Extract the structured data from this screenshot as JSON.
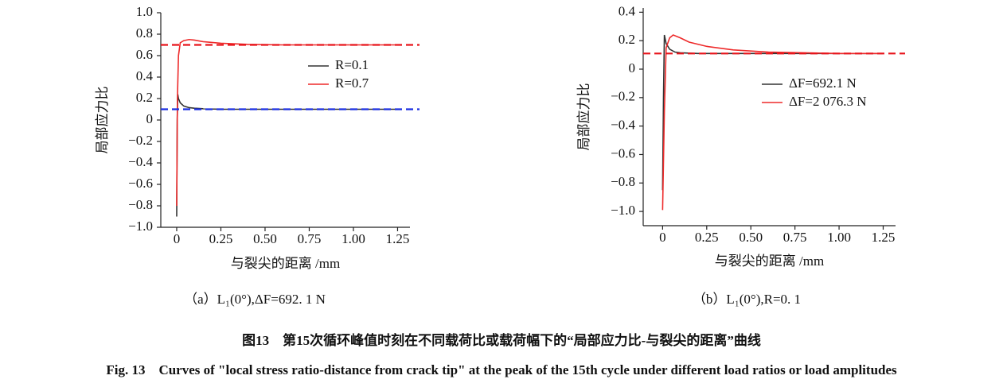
{
  "chart_data": [
    {
      "type": "line",
      "ylabel": "局部应力比",
      "xlabel": "与裂尖的距离 /mm",
      "caption": "（a）L₁(0°),ΔF=692. 1 N",
      "xlim": [
        -0.09,
        1.32
      ],
      "ylim": [
        -1.0,
        1.0
      ],
      "xticks": [
        0,
        0.25,
        {
          "value": 0.5,
          "label": "0.50"
        },
        0.75,
        {
          "value": 1.0,
          "label": "1.00"
        },
        1.25
      ],
      "yticks": [
        {
          "value": 1.0,
          "label": "1.0"
        },
        0.8,
        0.6,
        0.4,
        0.2,
        0,
        {
          "value": -0.2,
          "label": "−0.2"
        },
        {
          "value": -0.4,
          "label": "−0.4"
        },
        {
          "value": -0.6,
          "label": "−0.6"
        },
        {
          "value": -0.8,
          "label": "−0.8"
        },
        {
          "value": -1.0,
          "label": "−1.0"
        }
      ],
      "legend": "center right",
      "reference_lines": [
        {
          "value": 0.7,
          "color": "#e8141b"
        },
        {
          "value": 0.1,
          "color": "#1a2ee0"
        }
      ],
      "series": [
        {
          "name": "R=0.1",
          "color": "#333333",
          "x": [
            0,
            0.003,
            0.006,
            0.01,
            0.02,
            0.04,
            0.07,
            0.1,
            0.15,
            0.25,
            0.5,
            0.75,
            1.0,
            1.25
          ],
          "values": [
            -0.9,
            0,
            0.24,
            0.2,
            0.16,
            0.13,
            0.115,
            0.11,
            0.105,
            0.1,
            0.1,
            0.1,
            0.1,
            0.1
          ]
        },
        {
          "name": "R=0.7",
          "color": "#ee2a2a",
          "x": [
            0,
            0.004,
            0.01,
            0.02,
            0.04,
            0.07,
            0.1,
            0.15,
            0.25,
            0.4,
            0.6,
            0.8,
            1.0,
            1.25
          ],
          "values": [
            -0.8,
            0.2,
            0.6,
            0.72,
            0.74,
            0.75,
            0.745,
            0.73,
            0.715,
            0.705,
            0.7,
            0.7,
            0.7,
            0.7
          ]
        }
      ]
    },
    {
      "type": "line",
      "ylabel": "局部应力比",
      "xlabel": "与裂尖的距离 /mm",
      "caption": "（b）L₁(0°),R=0. 1",
      "xlim": [
        -0.11,
        1.32
      ],
      "ylim": [
        -1.1,
        0.43
      ],
      "xticks": [
        0,
        0.25,
        {
          "value": 0.5,
          "label": "0.50"
        },
        0.75,
        {
          "value": 1.0,
          "label": "1.00"
        },
        1.25
      ],
      "yticks": [
        0.4,
        0.2,
        0,
        {
          "value": -0.2,
          "label": "−0.2"
        },
        {
          "value": -0.4,
          "label": "−0.4"
        },
        {
          "value": -0.6,
          "label": "−0.6"
        },
        {
          "value": -0.8,
          "label": "−0.8"
        },
        {
          "value": -1.0,
          "label": "−1.0"
        }
      ],
      "legend": "upper right",
      "reference_lines": [
        {
          "value": 0.11,
          "color": "#e8141b"
        }
      ],
      "series": [
        {
          "name": "ΔF=692.1 N",
          "color": "#333333",
          "x": [
            0,
            0.005,
            0.01,
            0.02,
            0.04,
            0.07,
            0.1,
            0.2,
            0.5,
            1.0,
            1.25
          ],
          "values": [
            -0.85,
            -0.2,
            0.24,
            0.18,
            0.14,
            0.12,
            0.115,
            0.11,
            0.11,
            0.11,
            0.11
          ]
        },
        {
          "name": "ΔF=2 076.3 N",
          "color": "#ee2a2a",
          "x": [
            0,
            0.01,
            0.02,
            0.04,
            0.06,
            0.1,
            0.15,
            0.25,
            0.4,
            0.6,
            0.8,
            1.0,
            1.25
          ],
          "values": [
            -0.99,
            -0.3,
            0.15,
            0.22,
            0.24,
            0.22,
            0.19,
            0.16,
            0.135,
            0.12,
            0.115,
            0.11,
            0.11
          ]
        }
      ]
    }
  ],
  "figure": {
    "caption_cn": "图13　第15次循环峰值时刻在不同载荷比或载荷幅下的“局部应力比-与裂尖的距离”曲线",
    "caption_en": "Fig. 13　Curves of \"local stress ratio-distance from crack tip\" at the peak of the 15th cycle under different load ratios or load amplitudes"
  }
}
